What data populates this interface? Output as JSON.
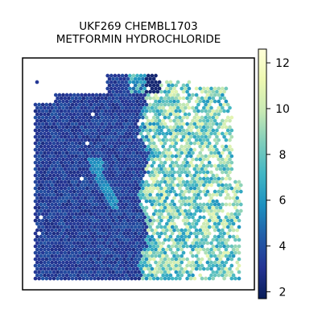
{
  "chart_data": {
    "type": "heatmap",
    "subtype": "spatial-hexbin",
    "title_lines": [
      "UKF269 CHEMBL1703",
      "METFORMIN HYDROCHLORIDE"
    ],
    "colormap": "YlGnBu",
    "color_stops": [
      "#081d58",
      "#253494",
      "#225ea8",
      "#1d91c0",
      "#41b6c4",
      "#7fcdbb",
      "#c7e9b4",
      "#edf8b1",
      "#ffffd9"
    ],
    "colorbar": {
      "min": 1.7,
      "max": 12.6,
      "ticks": [
        2,
        4,
        6,
        8,
        10,
        12
      ],
      "tick_labels": [
        "2",
        "4",
        "6",
        "8",
        "10",
        "12"
      ]
    },
    "regions": {
      "left_tissue_mean": 3.4,
      "right_tissue_mean": 8.5,
      "band_mean": 5.8,
      "top_spots_mean": 6.5
    },
    "axes_visible": false,
    "grid": false
  }
}
